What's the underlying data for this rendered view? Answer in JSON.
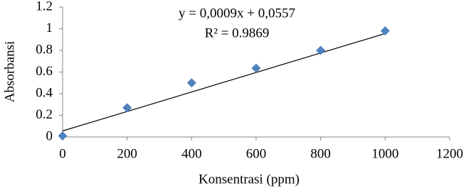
{
  "chart_data": {
    "type": "scatter",
    "x_label": "Konsentrasi (ppm)",
    "y_label": "Absorbansi",
    "annotations": [
      "y = 0,0009x + 0,0557",
      "R² = 0.9869"
    ],
    "x": [
      0,
      200,
      400,
      600,
      800,
      1000
    ],
    "series": [
      {
        "name": "Absorbansi",
        "color": "#4f81bd",
        "values": [
          0.01,
          0.27,
          0.5,
          0.635,
          0.8,
          0.98
        ]
      }
    ],
    "trendline": {
      "slope": 0.0009,
      "intercept": 0.0557,
      "color": "#000000"
    },
    "xlim": [
      0,
      1200
    ],
    "xticks": [
      0,
      200,
      400,
      600,
      800,
      1000,
      1200
    ],
    "ylim": [
      0,
      1.2
    ],
    "yticks": [
      0,
      0.2,
      0.4,
      0.6,
      0.8,
      1,
      1.2
    ],
    "grid": false
  }
}
